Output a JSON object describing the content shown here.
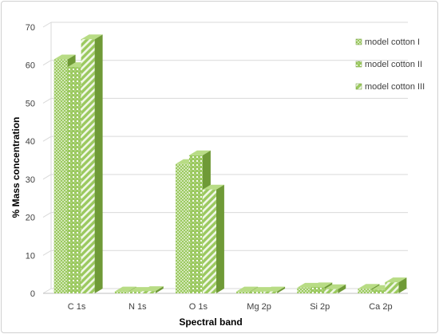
{
  "chart_data": {
    "type": "bar",
    "title": "",
    "xlabel": "Spectral band",
    "ylabel": "% Mass concentration",
    "categories": [
      "C 1s",
      "N 1s",
      "O 1s",
      "Mg 2p",
      "Si 2p",
      "Ca 2p"
    ],
    "series": [
      {
        "name": "model cotton I",
        "values": [
          61.5,
          0.5,
          34.0,
          0.5,
          1.5,
          1.2
        ]
      },
      {
        "name": "model cotton II",
        "values": [
          59.5,
          0.4,
          36.3,
          0.4,
          1.6,
          0.9
        ]
      },
      {
        "name": "model cotton III",
        "values": [
          66.8,
          0.6,
          27.3,
          0.5,
          1.1,
          2.9
        ]
      }
    ],
    "ylim": [
      0,
      70
    ],
    "yticks": [
      0,
      10,
      20,
      30,
      40,
      50,
      60,
      70
    ],
    "grid": true,
    "legend_position": "right",
    "colors": {
      "front": "#9bc95f",
      "side": "#6f9a37",
      "top": "#b8dc85",
      "pattern": "#ffffff",
      "grid": "#d9d9d9"
    }
  }
}
